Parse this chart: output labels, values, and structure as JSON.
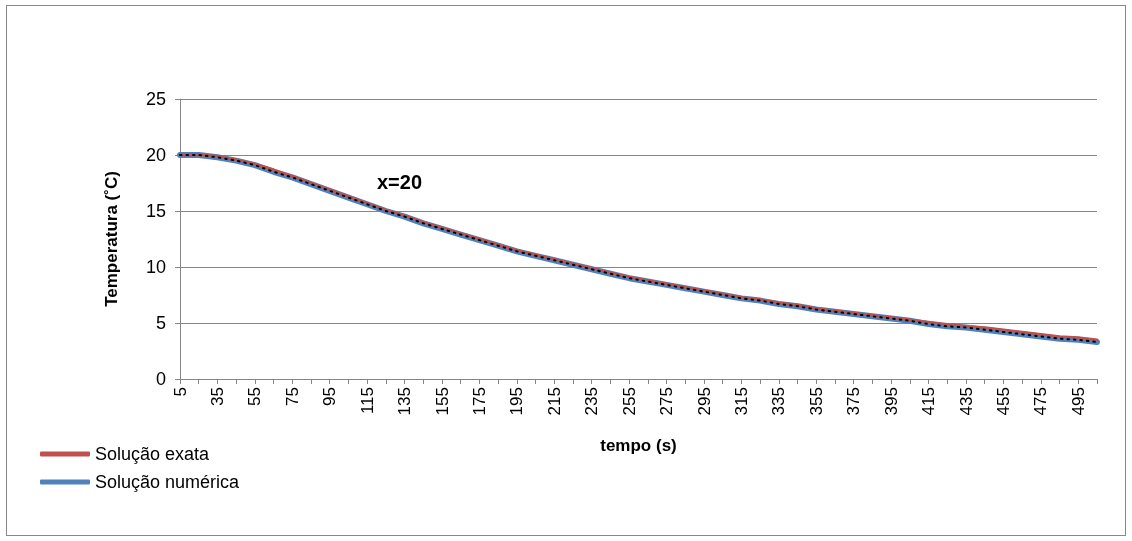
{
  "chart_data": {
    "type": "line",
    "xlabel": "tempo (s)",
    "ylabel": "Temperatura (˚C)",
    "annotations": [
      "x=20"
    ],
    "categories": [
      "5",
      null,
      "35",
      null,
      "55",
      null,
      "75",
      null,
      "95",
      null,
      "115",
      null,
      "135",
      null,
      "155",
      null,
      "175",
      null,
      "195",
      null,
      "215",
      null,
      "235",
      null,
      "255",
      null,
      "275",
      null,
      "295",
      null,
      "315",
      null,
      "335",
      null,
      "355",
      null,
      "375",
      null,
      "395",
      null,
      "415",
      null,
      "435",
      null,
      "455",
      null,
      "475",
      null,
      "495",
      null
    ],
    "series": [
      {
        "name": "Solução exata",
        "color": "#c0504d",
        "values": [
          20.0,
          20.0,
          19.9,
          19.6,
          19.2,
          18.7,
          18.1,
          17.5,
          16.9,
          16.3,
          15.7,
          15.1,
          14.6,
          14.0,
          13.5,
          13.0,
          12.5,
          12.0,
          11.5,
          11.1,
          10.7,
          10.3,
          9.9,
          9.5,
          9.1,
          8.8,
          8.5,
          8.2,
          7.9,
          7.6,
          7.3,
          7.1,
          6.8,
          6.6,
          6.3,
          6.1,
          5.9,
          5.7,
          5.5,
          5.3,
          5.1,
          4.9,
          4.7,
          4.6,
          4.4,
          4.2,
          4.0,
          3.8,
          3.7,
          3.5
        ]
      },
      {
        "name": "Solução numérica",
        "color": "#4f81bd",
        "values": [
          20.0,
          20.0,
          19.8,
          19.5,
          19.1,
          18.5,
          18.0,
          17.4,
          16.8,
          16.2,
          15.6,
          15.0,
          14.5,
          13.9,
          13.4,
          12.9,
          12.4,
          11.9,
          11.4,
          11.0,
          10.6,
          10.2,
          9.8,
          9.4,
          9.0,
          8.7,
          8.4,
          8.1,
          7.8,
          7.5,
          7.2,
          7.0,
          6.7,
          6.5,
          6.2,
          6.0,
          5.8,
          5.6,
          5.4,
          5.2,
          4.9,
          4.7,
          4.6,
          4.4,
          4.2,
          4.0,
          3.8,
          3.6,
          3.5,
          3.3
        ]
      },
      {
        "color": "#000000",
        "line_style": "dotted",
        "values": [
          20.0,
          20.0,
          19.8,
          19.5,
          19.1,
          18.5,
          18.0,
          17.4,
          16.8,
          16.2,
          15.6,
          15.0,
          14.5,
          13.9,
          13.4,
          12.9,
          12.4,
          11.9,
          11.4,
          11.0,
          10.6,
          10.2,
          9.8,
          9.4,
          9.0,
          8.7,
          8.4,
          8.1,
          7.8,
          7.5,
          7.2,
          7.0,
          6.7,
          6.5,
          6.2,
          6.0,
          5.8,
          5.6,
          5.4,
          5.2,
          4.9,
          4.7,
          4.6,
          4.4,
          4.2,
          4.0,
          3.8,
          3.6,
          3.5,
          3.3
        ]
      }
    ],
    "ylim": [
      0,
      25
    ],
    "yticks": [
      0,
      5,
      10,
      15,
      20,
      25
    ],
    "grid": "y",
    "legend": "bottom left",
    "marker": "none",
    "line_style": "solid"
  }
}
